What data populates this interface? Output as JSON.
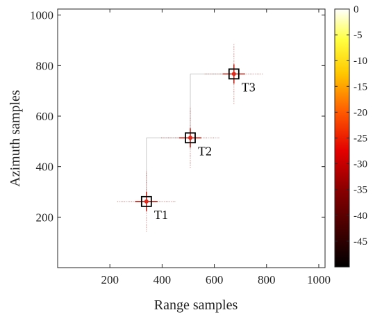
{
  "chart_data": {
    "type": "heatmap",
    "title": "",
    "xlabel": "Range samples",
    "ylabel": "Azimuth samples",
    "xlim": [
      0,
      1024
    ],
    "ylim": [
      0,
      1024
    ],
    "xticks": [
      200,
      400,
      600,
      800,
      1000
    ],
    "yticks": [
      200,
      400,
      600,
      800,
      1000
    ],
    "colorbar": {
      "colormap": "hot",
      "range": [
        -50,
        0
      ],
      "ticks": [
        0,
        -5,
        -10,
        -15,
        -20,
        -25,
        -30,
        -35,
        -40,
        -45
      ],
      "tick_labels": [
        "0",
        "-5",
        "-10",
        "-15",
        "-20",
        "-25",
        "-30",
        "-35",
        "-40",
        "-45"
      ]
    },
    "targets": [
      {
        "label": "T1",
        "range": 340,
        "azimuth": 262
      },
      {
        "label": "T2",
        "range": 508,
        "azimuth": 514
      },
      {
        "label": "T3",
        "range": 675,
        "azimuth": 767
      }
    ],
    "connector_color": "#c8c8c8",
    "marker_color": "#000000",
    "peak_color": "#e0281a"
  }
}
